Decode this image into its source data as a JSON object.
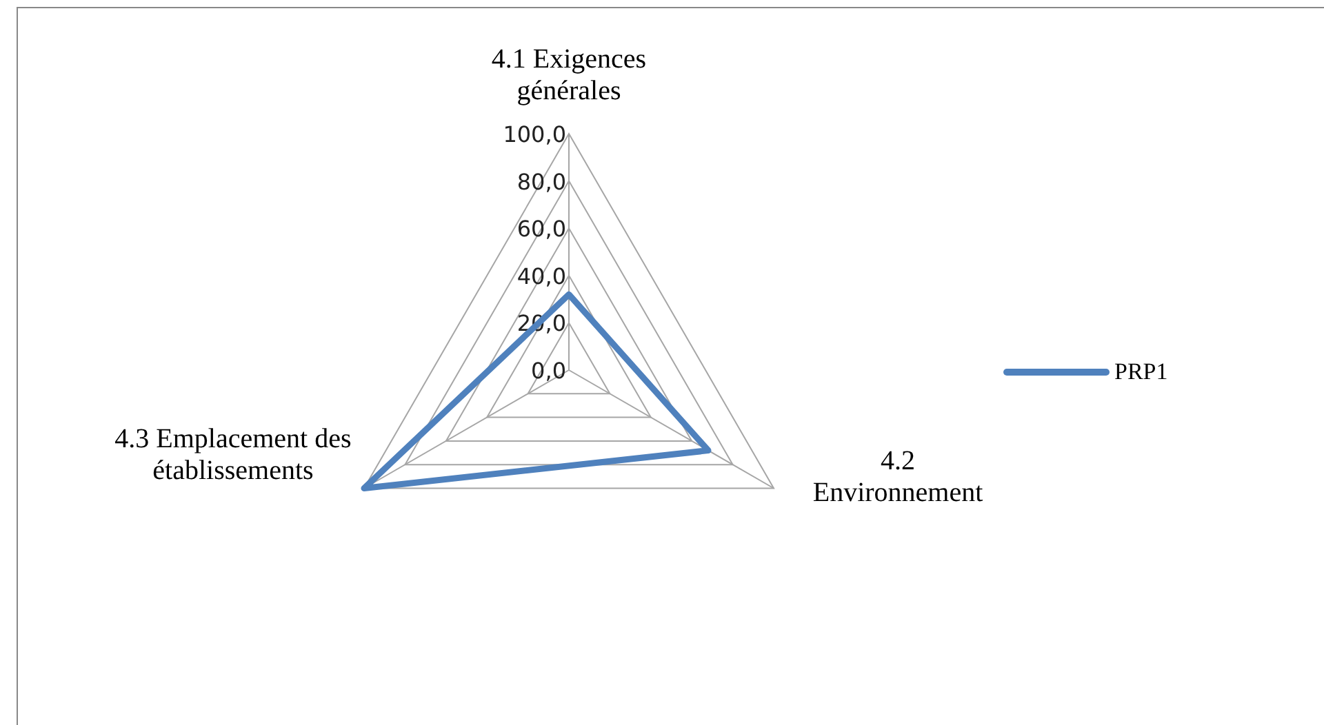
{
  "chart_data": {
    "type": "radar",
    "categories": [
      "4.1 Exigences générales",
      "4.2 Environnement",
      "4.3 Emplacement des établissements"
    ],
    "series": [
      {
        "name": "PRP1",
        "color": "#4f81bd",
        "values": [
          32,
          68,
          100
        ]
      }
    ],
    "ylim": [
      0,
      100
    ],
    "yticks": [
      {
        "value": 0,
        "label": "0,0"
      },
      {
        "value": 20,
        "label": "20,0"
      },
      {
        "value": 40,
        "label": "40,0"
      },
      {
        "value": 60,
        "label": "60,0"
      },
      {
        "value": 80,
        "label": "80,0"
      },
      {
        "value": 100,
        "label": "100,0"
      }
    ],
    "grid": true,
    "legend": "right",
    "marker": "none",
    "line_style": "solid"
  }
}
